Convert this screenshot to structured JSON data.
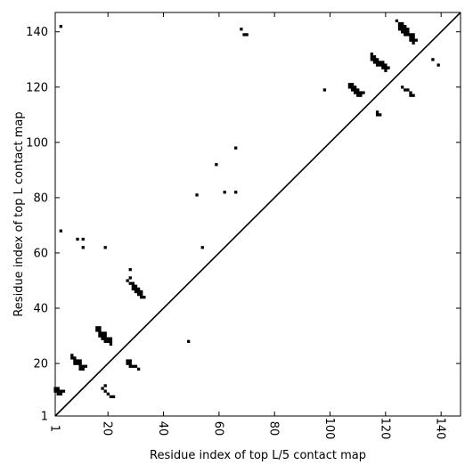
{
  "chart_data": {
    "type": "scatter",
    "subtype": "contact-map",
    "title": "",
    "xlabel": "Residue index of top L/5 contact map",
    "ylabel": "Residue index of top L contact map",
    "xlim": [
      1,
      147
    ],
    "ylim": [
      1,
      147
    ],
    "xticks": [
      1,
      20,
      40,
      60,
      80,
      100,
      120,
      140
    ],
    "yticks": [
      1,
      20,
      40,
      60,
      80,
      100,
      120,
      140
    ],
    "tick_labels_rotated_x": true,
    "grid": false,
    "diagonal_line": true,
    "colors": {
      "contact": "#000000",
      "line": "#000000",
      "background": "#ffffff"
    },
    "lower_triangle_contacts": [
      [
        1,
        10
      ],
      [
        1,
        11
      ],
      [
        2,
        10
      ],
      [
        2,
        11
      ],
      [
        2,
        9
      ],
      [
        3,
        9
      ],
      [
        3,
        10
      ],
      [
        4,
        10
      ],
      [
        7,
        22
      ],
      [
        7,
        23
      ],
      [
        8,
        20
      ],
      [
        8,
        21
      ],
      [
        8,
        22
      ],
      [
        9,
        20
      ],
      [
        9,
        21
      ],
      [
        10,
        18
      ],
      [
        10,
        19
      ],
      [
        10,
        20
      ],
      [
        10,
        21
      ],
      [
        11,
        18
      ],
      [
        11,
        19
      ],
      [
        12,
        19
      ],
      [
        16,
        32
      ],
      [
        16,
        33
      ],
      [
        17,
        30
      ],
      [
        17,
        31
      ],
      [
        17,
        32
      ],
      [
        17,
        33
      ],
      [
        18,
        11
      ],
      [
        18,
        29
      ],
      [
        18,
        30
      ],
      [
        18,
        31
      ],
      [
        19,
        12
      ],
      [
        19,
        10
      ],
      [
        19,
        28
      ],
      [
        19,
        29
      ],
      [
        19,
        30
      ],
      [
        19,
        31
      ],
      [
        20,
        9
      ],
      [
        20,
        28
      ],
      [
        20,
        29
      ],
      [
        21,
        8
      ],
      [
        21,
        27
      ],
      [
        21,
        28
      ],
      [
        21,
        29
      ],
      [
        22,
        8
      ],
      [
        27,
        20
      ],
      [
        27,
        21
      ],
      [
        27,
        50
      ],
      [
        28,
        19
      ],
      [
        28,
        20
      ],
      [
        28,
        21
      ],
      [
        28,
        49
      ],
      [
        28,
        51
      ],
      [
        28,
        54
      ],
      [
        29,
        19
      ],
      [
        29,
        47
      ],
      [
        29,
        48
      ],
      [
        29,
        49
      ],
      [
        30,
        19
      ],
      [
        30,
        46
      ],
      [
        30,
        47
      ],
      [
        30,
        48
      ],
      [
        31,
        18
      ],
      [
        31,
        45
      ],
      [
        31,
        46
      ],
      [
        31,
        47
      ],
      [
        32,
        44
      ],
      [
        32,
        45
      ],
      [
        32,
        46
      ],
      [
        33,
        44
      ],
      [
        49,
        28
      ]
    ],
    "upper_triangle_contacts": [
      [
        3,
        68
      ],
      [
        3,
        142
      ],
      [
        9,
        65
      ],
      [
        11,
        62
      ],
      [
        11,
        65
      ],
      [
        19,
        62
      ],
      [
        52,
        81
      ],
      [
        54,
        62
      ],
      [
        59,
        92
      ],
      [
        62,
        82
      ],
      [
        66,
        82
      ],
      [
        66,
        98
      ],
      [
        68,
        141
      ],
      [
        69,
        139
      ],
      [
        70,
        139
      ],
      [
        98,
        119
      ],
      [
        107,
        120
      ],
      [
        107,
        121
      ],
      [
        108,
        119
      ],
      [
        108,
        120
      ],
      [
        108,
        121
      ],
      [
        109,
        118
      ],
      [
        109,
        119
      ],
      [
        109,
        120
      ],
      [
        110,
        117
      ],
      [
        110,
        118
      ],
      [
        110,
        119
      ],
      [
        111,
        117
      ],
      [
        111,
        118
      ],
      [
        112,
        118
      ],
      [
        115,
        130
      ],
      [
        115,
        131
      ],
      [
        115,
        132
      ],
      [
        116,
        129
      ],
      [
        116,
        130
      ],
      [
        116,
        131
      ],
      [
        117,
        110
      ],
      [
        117,
        111
      ],
      [
        117,
        128
      ],
      [
        117,
        129
      ],
      [
        117,
        130
      ],
      [
        118,
        110
      ],
      [
        118,
        128
      ],
      [
        118,
        129
      ],
      [
        119,
        127
      ],
      [
        119,
        128
      ],
      [
        119,
        129
      ],
      [
        120,
        126
      ],
      [
        120,
        127
      ],
      [
        120,
        128
      ],
      [
        121,
        127
      ],
      [
        124,
        144
      ],
      [
        125,
        141
      ],
      [
        125,
        142
      ],
      [
        125,
        143
      ],
      [
        126,
        120
      ],
      [
        126,
        140
      ],
      [
        126,
        141
      ],
      [
        126,
        142
      ],
      [
        126,
        143
      ],
      [
        127,
        119
      ],
      [
        127,
        139
      ],
      [
        127,
        140
      ],
      [
        127,
        141
      ],
      [
        127,
        142
      ],
      [
        128,
        119
      ],
      [
        128,
        139
      ],
      [
        128,
        140
      ],
      [
        128,
        141
      ],
      [
        129,
        117
      ],
      [
        129,
        118
      ],
      [
        129,
        137
      ],
      [
        129,
        138
      ],
      [
        129,
        139
      ],
      [
        130,
        117
      ],
      [
        130,
        136
      ],
      [
        130,
        137
      ],
      [
        130,
        138
      ],
      [
        130,
        139
      ],
      [
        131,
        137
      ],
      [
        137,
        130
      ],
      [
        139,
        128
      ]
    ]
  }
}
